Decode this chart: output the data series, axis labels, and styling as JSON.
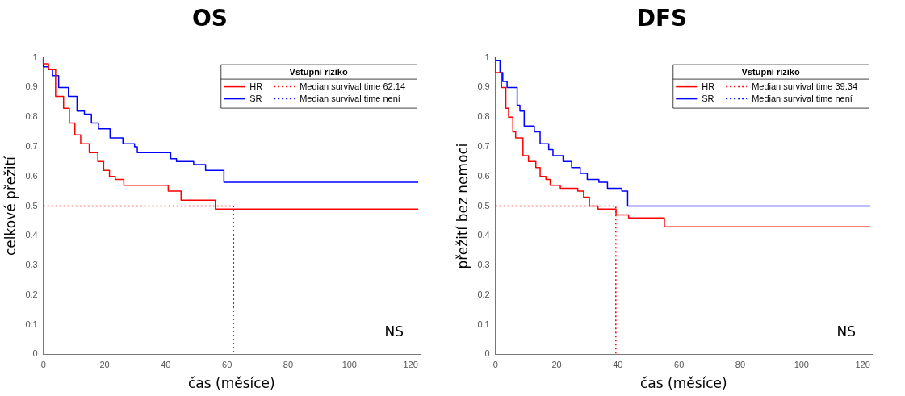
{
  "chart_data": [
    {
      "type": "step",
      "title": "OS",
      "xlabel": "čas (měsíce)",
      "ylabel": "celkové přežití",
      "legend_title": "Vstupní riziko",
      "legend": "top right",
      "annotations": [
        "NS"
      ],
      "xlim": [
        0,
        123
      ],
      "ylim": [
        0,
        1
      ],
      "xticks": [
        0,
        20,
        40,
        60,
        80,
        100,
        120
      ],
      "yticks": [
        0,
        0.1,
        0.2,
        0.3,
        0.4,
        0.5,
        0.6,
        0.7,
        0.8,
        0.9,
        1
      ],
      "grid": false,
      "series": [
        {
          "name": "HR",
          "color": "#ff0000",
          "x": [
            0,
            1.7,
            4,
            6.6,
            8.5,
            10.3,
            12.2,
            15,
            17.8,
            19.7,
            21.6,
            23.5,
            26.3,
            40.8,
            45,
            56.2,
            62.3,
            122.5
          ],
          "values": [
            1,
            0.98,
            0.96,
            0.87,
            0.83,
            0.78,
            0.74,
            0.71,
            0.68,
            0.65,
            0.62,
            0.6,
            0.59,
            0.57,
            0.55,
            0.52,
            0.49,
            0.49
          ]
        },
        {
          "name": "SR",
          "color": "#0000ff",
          "x": [
            0,
            1.6,
            3,
            5,
            8.2,
            11,
            13.4,
            15.7,
            18,
            21.8,
            26,
            29.8,
            30.7,
            41.6,
            43.5,
            49.1,
            53,
            59,
            94.2,
            122.5
          ],
          "values": [
            1,
            0.97,
            0.96,
            0.94,
            0.9,
            0.87,
            0.82,
            0.81,
            0.78,
            0.76,
            0.73,
            0.71,
            0.7,
            0.68,
            0.66,
            0.65,
            0.64,
            0.62,
            0.58,
            0.58
          ]
        },
        {
          "name": "Median survival time 62.14",
          "type": "line",
          "line_style": "dotted",
          "color": "#ff0000",
          "x": [
            0,
            62.14,
            62.14
          ],
          "values": [
            0.5,
            0.5,
            0
          ]
        },
        {
          "name": "Median survival time není",
          "type": "line",
          "line_style": "dotted",
          "color": "#0000ff"
        }
      ]
    },
    {
      "type": "step",
      "title": "DFS",
      "xlabel": "čas (měsíce)",
      "ylabel": "přežití bez nemoci",
      "legend_title": "Vstupní riziko",
      "legend": "top right",
      "annotations": [
        "NS"
      ],
      "xlim": [
        0,
        123
      ],
      "ylim": [
        0,
        1
      ],
      "xticks": [
        0,
        20,
        40,
        60,
        80,
        100,
        120
      ],
      "yticks": [
        0,
        0.1,
        0.2,
        0.3,
        0.4,
        0.5,
        0.6,
        0.7,
        0.8,
        0.9,
        1
      ],
      "grid": false,
      "series": [
        {
          "name": "HR",
          "color": "#ff0000",
          "x": [
            0,
            2,
            3.4,
            4.3,
            5.7,
            6.6,
            9,
            10.8,
            13.2,
            14.6,
            16.5,
            17.9,
            21.2,
            26.9,
            28.8,
            30.7,
            33.5,
            39.4,
            43.5,
            55.2,
            81,
            122.5
          ],
          "values": [
            1,
            0.95,
            0.9,
            0.83,
            0.8,
            0.75,
            0.73,
            0.67,
            0.65,
            0.63,
            0.6,
            0.59,
            0.57,
            0.56,
            0.55,
            0.53,
            0.5,
            0.49,
            0.47,
            0.46,
            0.43,
            0.43
          ]
        },
        {
          "name": "SR",
          "color": "#0000ff",
          "x": [
            0,
            1.5,
            2.4,
            3.8,
            7.1,
            8,
            9.4,
            12.7,
            14.6,
            17.4,
            18.8,
            22.1,
            24.9,
            27.7,
            30,
            33.8,
            36.6,
            41.3,
            43.2,
            92.3,
            122.5
          ],
          "values": [
            1,
            0.99,
            0.95,
            0.92,
            0.9,
            0.84,
            0.82,
            0.77,
            0.75,
            0.71,
            0.69,
            0.67,
            0.65,
            0.63,
            0.61,
            0.59,
            0.58,
            0.56,
            0.55,
            0.5,
            0.5
          ]
        },
        {
          "name": "Median survival time 39.34",
          "type": "line",
          "line_style": "dotted",
          "color": "#ff0000",
          "x": [
            0,
            39.34,
            39.34
          ],
          "values": [
            0.5,
            0.5,
            0
          ]
        },
        {
          "name": "Median survival time není",
          "type": "line",
          "line_style": "dotted",
          "color": "#0000ff"
        }
      ]
    }
  ]
}
